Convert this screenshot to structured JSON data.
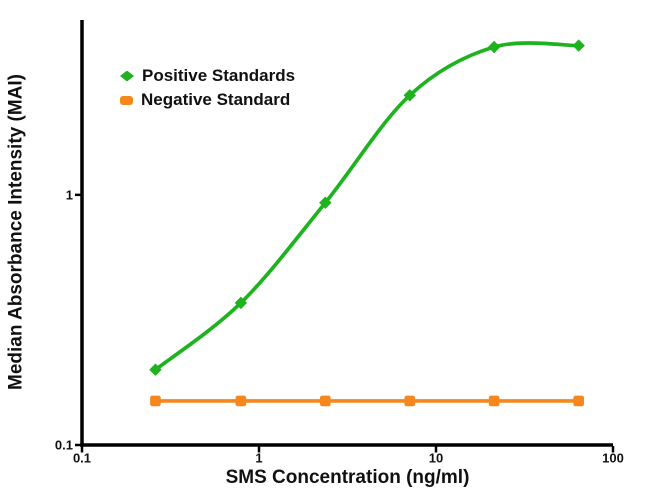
{
  "chart_data": {
    "type": "line",
    "title": "",
    "xlabel": "SMS Concentration (ng/ml)",
    "ylabel": "Median Absorbance Intensity (MAI)",
    "xscale": "log",
    "yscale": "log",
    "xlim": [
      0.1,
      100
    ],
    "ylim": [
      0.1,
      5
    ],
    "grid": false,
    "legend_position": "top-left-inside",
    "axis_color": "#000000",
    "text_color": "#111111",
    "xticks": [
      {
        "value": 0.1,
        "label": "0.1"
      },
      {
        "value": 1,
        "label": "1"
      },
      {
        "value": 10,
        "label": "10"
      },
      {
        "value": 100,
        "label": "100"
      }
    ],
    "yticks": [
      {
        "value": 0.1,
        "label": "0.1"
      },
      {
        "value": 1,
        "label": "1"
      }
    ],
    "x": [
      0.26,
      0.79,
      2.37,
      7.11,
      21.3,
      64
    ],
    "series": [
      {
        "name": "Positive Standards",
        "color": "#1eb21e",
        "marker": "diamond",
        "smooth": true,
        "values": [
          0.2,
          0.37,
          0.93,
          2.5,
          3.9,
          3.95
        ]
      },
      {
        "name": "Negative Standard",
        "color": "#f6871d",
        "marker": "square",
        "smooth": false,
        "values": [
          0.15,
          0.15,
          0.15,
          0.15,
          0.15,
          0.15
        ]
      }
    ]
  }
}
